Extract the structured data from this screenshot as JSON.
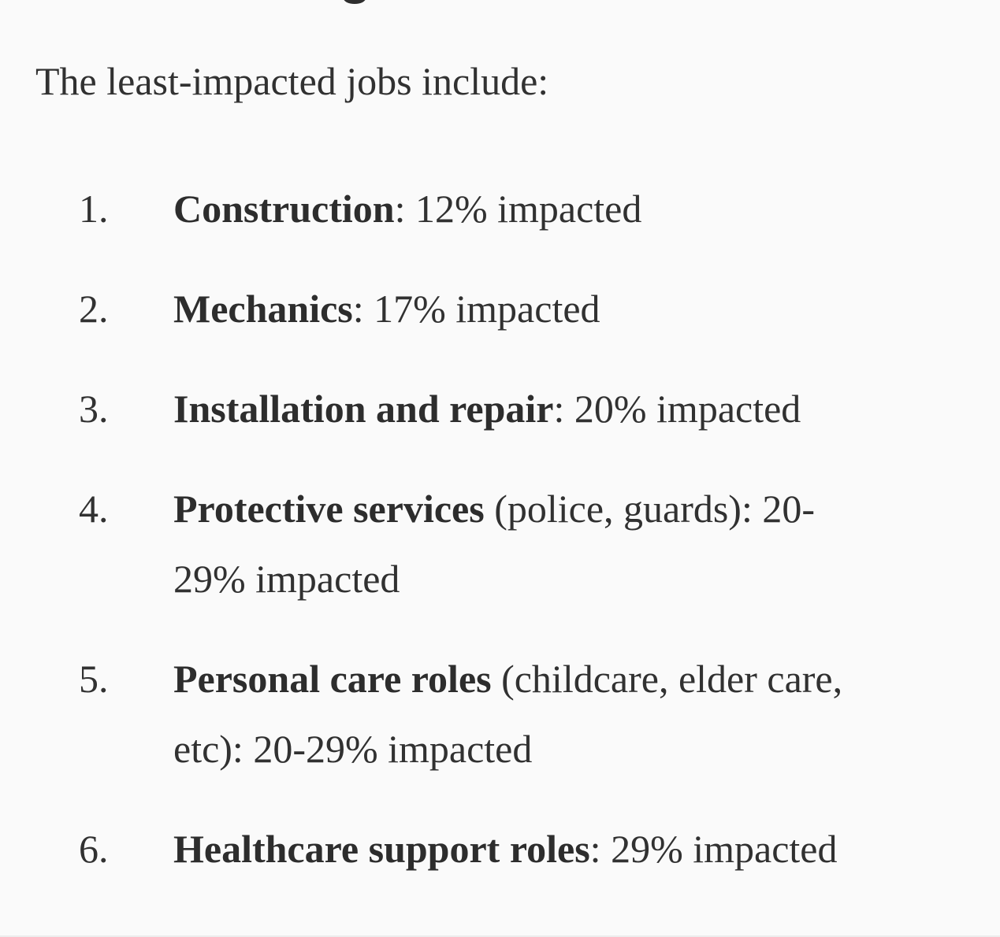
{
  "page": {
    "background_color": "#fafafa",
    "text_color": "#313131"
  },
  "partial_heading": {
    "fragment": "descender tip of cut-off heading glyph"
  },
  "intro": {
    "text": "The least-impacted jobs include:"
  },
  "list": {
    "items": [
      {
        "number": "1.",
        "lines": [
          [
            {
              "b": true,
              "t": "Construction"
            },
            {
              "b": false,
              "t": ": 12% impacted"
            }
          ]
        ]
      },
      {
        "number": "2.",
        "lines": [
          [
            {
              "b": true,
              "t": "Mechanics"
            },
            {
              "b": false,
              "t": ": 17% impacted"
            }
          ]
        ]
      },
      {
        "number": "3.",
        "lines": [
          [
            {
              "b": true,
              "t": "Installation and repair"
            },
            {
              "b": false,
              "t": ": 20% impacted"
            }
          ]
        ]
      },
      {
        "number": "4.",
        "lines": [
          [
            {
              "b": true,
              "t": "Protective services"
            },
            {
              "b": false,
              "t": " (police, guards): 20-"
            }
          ],
          [
            {
              "b": false,
              "t": "29% impacted"
            }
          ]
        ]
      },
      {
        "number": "5.",
        "lines": [
          [
            {
              "b": true,
              "t": "Personal care roles"
            },
            {
              "b": false,
              "t": " (childcare, elder care,"
            }
          ],
          [
            {
              "b": false,
              "t": "etc): 20-29% impacted"
            }
          ]
        ]
      },
      {
        "number": "6.",
        "lines": [
          [
            {
              "b": true,
              "t": "Healthcare support roles"
            },
            {
              "b": false,
              "t": ": 29% impacted"
            }
          ]
        ]
      }
    ]
  }
}
